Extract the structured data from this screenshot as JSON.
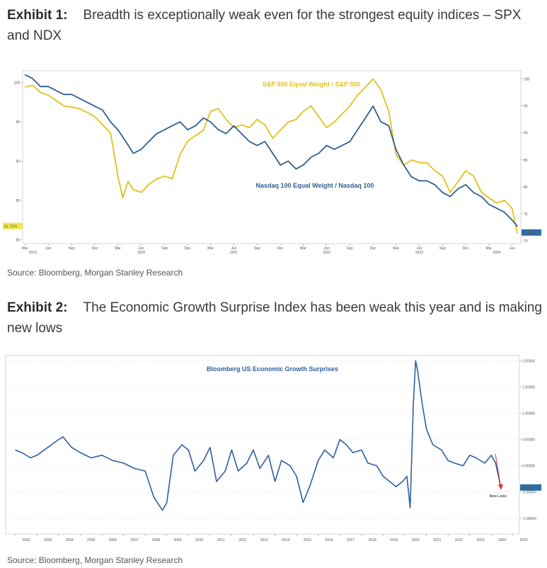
{
  "exhibit1": {
    "label": "Exhibit 1:",
    "title": "Breadth is exceptionally weak even for the strongest equity indices – SPX and NDX",
    "source": "Source: Bloomberg, Morgan Stanley Research"
  },
  "exhibit2": {
    "label": "Exhibit 2:",
    "title": "The Economic Growth Surprise Index has been weak this year and is making new lows",
    "source": "Source: Bloomberg, Morgan Stanley Research"
  },
  "chart_data": [
    {
      "type": "line",
      "x_start": "2019-03",
      "x_end": "2024-06",
      "x_months": [
        "Mar",
        "Jun",
        "Sep",
        "Dec",
        "Mar",
        "Jun",
        "Sep",
        "Dec",
        "Mar",
        "Jun",
        "Sep",
        "Dec",
        "Mar",
        "Jun",
        "Sep",
        "Dec",
        "Mar",
        "Jun",
        "Sep",
        "Dec",
        "Mar",
        "Jun"
      ],
      "x_month_dates": [
        "2019-03",
        "2019-06",
        "2019-09",
        "2019-12",
        "2020-03",
        "2020-06",
        "2020-09",
        "2020-12",
        "2021-03",
        "2021-06",
        "2021-09",
        "2021-12",
        "2022-03",
        "2022-06",
        "2022-09",
        "2022-12",
        "2023-03",
        "2023-06",
        "2023-09",
        "2023-12",
        "2024-03",
        "2024-06"
      ],
      "x_years": [
        "2019",
        "2020",
        "2021",
        "2022",
        "2023",
        "2024"
      ],
      "x_year_dates": [
        "2019-04",
        "2020-06",
        "2021-06",
        "2022-06",
        "2023-06",
        "2024-04"
      ],
      "left_ticks": [
        80,
        85,
        90,
        95,
        100
      ],
      "left_ylim": [
        79.5,
        101.5
      ],
      "right_ticks": [
        70,
        75,
        80,
        85,
        90,
        95,
        100
      ],
      "right_ylim": [
        69.5,
        101.5
      ],
      "left_last_value": "81.7379",
      "right_last_value": "71.5338",
      "series": [
        {
          "name": "S&P 500 Equal Weight / S&P 500",
          "axis": "right",
          "color": "#e0c21a",
          "x": [
            "2019-03-01",
            "2019-04-01",
            "2019-05-01",
            "2019-06-01",
            "2019-07-01",
            "2019-08-01",
            "2019-09-01",
            "2019-10-01",
            "2019-11-01",
            "2019-12-01",
            "2020-01-01",
            "2020-02-01",
            "2020-03-01",
            "2020-03-20",
            "2020-04-10",
            "2020-05-01",
            "2020-06-01",
            "2020-07-01",
            "2020-08-01",
            "2020-09-01",
            "2020-10-01",
            "2020-11-01",
            "2020-12-01",
            "2021-01-01",
            "2021-02-01",
            "2021-03-01",
            "2021-04-01",
            "2021-05-01",
            "2021-06-01",
            "2021-07-01",
            "2021-08-01",
            "2021-09-01",
            "2021-10-01",
            "2021-11-01",
            "2021-12-01",
            "2022-01-01",
            "2022-02-01",
            "2022-03-01",
            "2022-04-01",
            "2022-05-01",
            "2022-06-01",
            "2022-07-01",
            "2022-08-01",
            "2022-09-01",
            "2022-10-01",
            "2022-11-01",
            "2022-12-01",
            "2023-01-01",
            "2023-02-01",
            "2023-03-01",
            "2023-04-01",
            "2023-05-01",
            "2023-06-01",
            "2023-07-01",
            "2023-08-01",
            "2023-09-01",
            "2023-10-01",
            "2023-11-01",
            "2023-12-01",
            "2024-01-01",
            "2024-02-01",
            "2024-03-01",
            "2024-04-01",
            "2024-05-01",
            "2024-06-01",
            "2024-06-21"
          ],
          "values": [
            98.5,
            98.8,
            97.5,
            97.0,
            96.0,
            95.0,
            94.8,
            94.5,
            93.8,
            93.0,
            91.5,
            90.0,
            82.0,
            78.0,
            81.0,
            79.5,
            79.0,
            80.5,
            81.5,
            82.0,
            81.5,
            86.0,
            88.5,
            89.5,
            90.5,
            94.0,
            94.5,
            92.5,
            91.0,
            91.5,
            91.0,
            92.5,
            91.5,
            89.0,
            90.5,
            92.0,
            92.5,
            94.0,
            95.0,
            93.0,
            91.0,
            92.0,
            93.5,
            95.0,
            97.0,
            98.5,
            100.0,
            98.0,
            94.0,
            86.0,
            84.0,
            85.0,
            84.5,
            84.5,
            83.0,
            82.0,
            79.0,
            81.0,
            83.0,
            82.0,
            79.0,
            78.0,
            77.0,
            77.5,
            76.0,
            71.5
          ]
        },
        {
          "name": "Nasdaq 100 Equal Weight / Nasdaq 100",
          "axis": "left",
          "color": "#2f5f8f",
          "x": [
            "2019-03-01",
            "2019-04-01",
            "2019-05-01",
            "2019-06-01",
            "2019-07-01",
            "2019-08-01",
            "2019-09-01",
            "2019-10-01",
            "2019-11-01",
            "2019-12-01",
            "2020-01-01",
            "2020-02-01",
            "2020-03-01",
            "2020-04-01",
            "2020-05-01",
            "2020-06-01",
            "2020-07-01",
            "2020-08-01",
            "2020-09-01",
            "2020-10-01",
            "2020-11-01",
            "2020-12-01",
            "2021-01-01",
            "2021-02-01",
            "2021-03-01",
            "2021-04-01",
            "2021-05-01",
            "2021-06-01",
            "2021-07-01",
            "2021-08-01",
            "2021-09-01",
            "2021-10-01",
            "2021-11-01",
            "2021-12-01",
            "2022-01-01",
            "2022-02-01",
            "2022-03-01",
            "2022-04-01",
            "2022-05-01",
            "2022-06-01",
            "2022-07-01",
            "2022-08-01",
            "2022-09-01",
            "2022-10-01",
            "2022-11-01",
            "2022-12-01",
            "2023-01-01",
            "2023-02-01",
            "2023-03-01",
            "2023-04-01",
            "2023-05-01",
            "2023-06-01",
            "2023-07-01",
            "2023-08-01",
            "2023-09-01",
            "2023-10-01",
            "2023-11-01",
            "2023-12-01",
            "2024-01-01",
            "2024-02-01",
            "2024-03-01",
            "2024-04-01",
            "2024-05-01",
            "2024-06-01",
            "2024-06-21"
          ],
          "values": [
            101.0,
            100.5,
            99.5,
            99.5,
            99.0,
            98.5,
            98.5,
            98.0,
            97.5,
            97.0,
            96.5,
            95.0,
            94.0,
            92.5,
            91.0,
            91.5,
            92.5,
            93.5,
            94.0,
            94.5,
            95.0,
            94.0,
            94.5,
            95.5,
            95.0,
            94.0,
            93.5,
            94.5,
            93.5,
            92.5,
            92.0,
            92.5,
            91.0,
            89.5,
            90.0,
            89.0,
            89.5,
            90.5,
            91.0,
            92.0,
            91.5,
            92.0,
            92.5,
            94.0,
            95.5,
            97.0,
            95.0,
            94.5,
            91.5,
            89.5,
            88.0,
            87.5,
            87.5,
            87.0,
            86.0,
            85.5,
            86.5,
            87.0,
            86.0,
            85.5,
            84.5,
            84.0,
            83.5,
            82.5,
            81.7
          ]
        }
      ]
    },
    {
      "type": "line",
      "title": "Bloomberg US Economic Growth Surprises",
      "x_years": [
        "2002",
        "2003",
        "2004",
        "2005",
        "2006",
        "2007",
        "2008",
        "2009",
        "2010",
        "2011",
        "2012",
        "2013",
        "2014",
        "2015",
        "2016",
        "2017",
        "2018",
        "2019",
        "2020",
        "2021",
        "2022",
        "2023",
        "2024",
        "2025"
      ],
      "right_ticks": [
        "2.00000",
        "1.50000",
        "1.00000",
        "0.50000",
        "0.00000",
        "-0.50000",
        "-1.00000"
      ],
      "right_tick_values": [
        2.0,
        1.5,
        1.0,
        0.5,
        0.0,
        -0.5,
        -1.0
      ],
      "ylim": [
        -1.3,
        2.1
      ],
      "last_value": "-0.4200",
      "annotation": "New Lows",
      "series": [
        {
          "name": "Bloomberg US Economic Growth Surprises",
          "color": "#2f5f9f",
          "x": [
            2002.0,
            2002.3,
            2002.7,
            2003.0,
            2003.5,
            2004.0,
            2004.2,
            2004.6,
            2005.0,
            2005.5,
            2006.0,
            2006.5,
            2007.0,
            2007.5,
            2008.0,
            2008.4,
            2008.8,
            2009.0,
            2009.3,
            2009.7,
            2010.0,
            2010.3,
            2010.7,
            2011.0,
            2011.3,
            2011.7,
            2012.0,
            2012.3,
            2012.7,
            2013.0,
            2013.3,
            2013.7,
            2014.0,
            2014.3,
            2014.7,
            2015.0,
            2015.3,
            2015.6,
            2016.0,
            2016.3,
            2016.7,
            2017.0,
            2017.3,
            2017.6,
            2018.0,
            2018.3,
            2018.7,
            2019.0,
            2019.3,
            2019.6,
            2019.9,
            2020.1,
            2020.25,
            2020.4,
            2020.5,
            2020.6,
            2020.8,
            2021.0,
            2021.3,
            2021.7,
            2022.0,
            2022.3,
            2022.7,
            2023.0,
            2023.3,
            2023.7,
            2024.0,
            2024.2,
            2024.45
          ],
          "values": [
            0.3,
            0.25,
            0.15,
            0.2,
            0.35,
            0.5,
            0.55,
            0.35,
            0.25,
            0.15,
            0.2,
            0.1,
            0.05,
            -0.05,
            -0.1,
            -0.6,
            -0.85,
            -0.7,
            0.2,
            0.4,
            0.3,
            -0.1,
            0.1,
            0.35,
            -0.3,
            -0.1,
            0.3,
            -0.1,
            0.05,
            0.3,
            -0.05,
            0.2,
            -0.3,
            0.1,
            0.0,
            -0.2,
            -0.7,
            -0.4,
            0.1,
            0.3,
            0.15,
            0.5,
            0.4,
            0.25,
            0.3,
            0.05,
            0.0,
            -0.2,
            -0.3,
            -0.4,
            -0.3,
            -0.2,
            -0.8,
            1.2,
            2.0,
            1.8,
            1.2,
            0.7,
            0.4,
            0.3,
            0.1,
            0.05,
            0.0,
            0.2,
            0.15,
            0.05,
            0.2,
            0.05,
            -0.42
          ]
        }
      ]
    }
  ]
}
